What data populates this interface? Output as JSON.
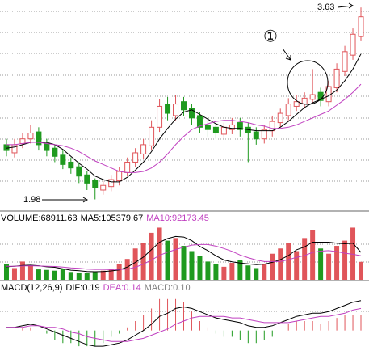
{
  "chart_data": {
    "type": "candlestick",
    "up_color": "#e0555a",
    "down_color": "#1f9a1f",
    "ylim": [
      1.9,
      3.68
    ],
    "open": [
      2.45,
      2.38,
      2.46,
      2.5,
      2.56,
      2.46,
      2.42,
      2.36,
      2.3,
      2.26,
      2.19,
      2.14,
      2.06,
      2.09,
      2.14,
      2.21,
      2.3,
      2.37,
      2.44,
      2.6,
      2.8,
      2.7,
      2.82,
      2.76,
      2.7,
      2.62,
      2.6,
      2.54,
      2.58,
      2.64,
      2.6,
      2.56,
      2.5,
      2.57,
      2.64,
      2.7,
      2.78,
      2.8,
      2.84,
      2.9,
      2.82,
      2.94,
      3.08,
      3.22,
      3.38
    ],
    "high": [
      2.5,
      2.5,
      2.55,
      2.62,
      2.6,
      2.5,
      2.45,
      2.4,
      2.34,
      2.3,
      2.22,
      2.16,
      2.14,
      2.19,
      2.26,
      2.34,
      2.42,
      2.5,
      2.66,
      2.84,
      2.86,
      2.88,
      2.86,
      2.8,
      2.73,
      2.66,
      2.64,
      2.64,
      2.68,
      2.68,
      2.64,
      2.6,
      2.62,
      2.7,
      2.76,
      2.85,
      2.88,
      2.9,
      3.1,
      2.94,
      3.0,
      3.15,
      3.3,
      3.45,
      3.63
    ],
    "low": [
      2.35,
      2.34,
      2.42,
      2.46,
      2.4,
      2.35,
      2.3,
      2.24,
      2.2,
      2.12,
      2.06,
      1.98,
      2.02,
      2.05,
      2.1,
      2.18,
      2.26,
      2.33,
      2.4,
      2.56,
      2.66,
      2.66,
      2.7,
      2.62,
      2.55,
      2.52,
      2.5,
      2.5,
      2.54,
      2.52,
      2.3,
      2.45,
      2.46,
      2.52,
      2.6,
      2.66,
      2.74,
      2.76,
      2.8,
      2.78,
      2.78,
      2.9,
      3.04,
      3.18,
      3.34
    ],
    "close": [
      2.4,
      2.45,
      2.5,
      2.55,
      2.45,
      2.4,
      2.35,
      2.28,
      2.25,
      2.18,
      2.12,
      2.08,
      2.1,
      2.15,
      2.22,
      2.3,
      2.38,
      2.45,
      2.6,
      2.78,
      2.72,
      2.8,
      2.75,
      2.68,
      2.6,
      2.58,
      2.55,
      2.6,
      2.62,
      2.58,
      2.55,
      2.5,
      2.58,
      2.65,
      2.72,
      2.8,
      2.82,
      2.85,
      2.88,
      2.83,
      2.95,
      3.1,
      3.25,
      3.4,
      3.55
    ],
    "series": [
      {
        "color": "#000000",
        "values": [
          2.42,
          2.43,
          2.45,
          2.47,
          2.47,
          2.47,
          2.45,
          2.41,
          2.35,
          2.29,
          2.24,
          2.18,
          2.15,
          2.13,
          2.13,
          2.17,
          2.23,
          2.3,
          2.39,
          2.5,
          2.59,
          2.67,
          2.73,
          2.75,
          2.71,
          2.67,
          2.63,
          2.6,
          2.59,
          2.59,
          2.58,
          2.57,
          2.57,
          2.57,
          2.6,
          2.65,
          2.71,
          2.77,
          2.81,
          2.84,
          2.87,
          2.92,
          3.0,
          3.1,
          3.23
        ]
      },
      {
        "color": "#c040c0",
        "values": [
          2.45,
          2.45,
          2.46,
          2.47,
          2.47,
          2.46,
          2.45,
          2.44,
          2.42,
          2.39,
          2.35,
          2.31,
          2.28,
          2.25,
          2.22,
          2.21,
          2.21,
          2.22,
          2.25,
          2.3,
          2.37,
          2.45,
          2.52,
          2.58,
          2.61,
          2.63,
          2.65,
          2.66,
          2.66,
          2.65,
          2.64,
          2.62,
          2.61,
          2.59,
          2.59,
          2.6,
          2.62,
          2.65,
          2.68,
          2.71,
          2.74,
          2.79,
          2.84,
          2.9,
          2.97
        ]
      }
    ],
    "annotations": [
      "3.63",
      "1.98",
      "①"
    ],
    "volume": {
      "ylim": [
        0,
        220000
      ],
      "legend": [
        {
          "text": "VOLUME:68911.63",
          "color": "#000000"
        },
        {
          "text": "MA5:105379.67",
          "color": "#000000"
        },
        {
          "text": "MA10:92173.45",
          "color": "#c040c0"
        }
      ],
      "values": [
        60000,
        45000,
        70000,
        55000,
        40000,
        38000,
        35000,
        42000,
        30000,
        28000,
        25000,
        30000,
        35000,
        40000,
        60000,
        80000,
        120000,
        140000,
        180000,
        200000,
        150000,
        160000,
        130000,
        110000,
        90000,
        70000,
        60000,
        50000,
        65000,
        75000,
        55000,
        45000,
        60000,
        100000,
        120000,
        140000,
        110000,
        160000,
        190000,
        120000,
        100000,
        130000,
        150000,
        200000,
        68911.63
      ],
      "series": [
        {
          "color": "#000000",
          "values": [
            50000,
            52000,
            55000,
            56000,
            54000,
            50000,
            48000,
            42000,
            37000,
            35000,
            32000,
            31000,
            32000,
            34000,
            38000,
            49000,
            67000,
            87000,
            116000,
            144000,
            158000,
            166000,
            164000,
            150000,
            128000,
            112000,
            92000,
            76000,
            69000,
            64000,
            61000,
            58000,
            60000,
            67000,
            77000,
            93000,
            115000,
            126000,
            144000,
            144000,
            144000,
            140000,
            138000,
            140000,
            105379.67
          ]
        },
        {
          "color": "#c040c0",
          "values": [
            52000,
            52000,
            53000,
            54000,
            53000,
            52000,
            51000,
            49000,
            46000,
            44000,
            41000,
            40000,
            40000,
            39000,
            40000,
            41000,
            48000,
            60000,
            76000,
            94000,
            106000,
            116000,
            125000,
            133000,
            135000,
            135000,
            129000,
            120000,
            109000,
            95000,
            85000,
            76000,
            70000,
            70000,
            70000,
            77000,
            86000,
            93000,
            105000,
            110000,
            112000,
            108000,
            102000,
            98000,
            92173.45
          ]
        }
      ]
    },
    "macd": {
      "ylim": [
        -0.12,
        0.24
      ],
      "legend": [
        {
          "text": "MACD(12,26,9)",
          "color": "#000000"
        },
        {
          "text": "DIF:0.19",
          "color": "#000000"
        },
        {
          "text": "DEA:0.14",
          "color": "#c040c0"
        },
        {
          "text": "MACD:0.10",
          "color": "#808080"
        }
      ],
      "values": [
        0,
        0,
        0.02,
        0.02,
        0,
        -0.02,
        -0.06,
        -0.08,
        -0.08,
        -0.1,
        -0.1,
        -0.1,
        -0.08,
        -0.04,
        -0.02,
        0.02,
        0.06,
        0.1,
        0.14,
        0.2,
        0.2,
        0.2,
        0.18,
        0.12,
        0.06,
        0.02,
        -0.02,
        -0.04,
        -0.04,
        -0.06,
        -0.08,
        -0.08,
        -0.06,
        -0.04,
        0,
        0.04,
        0.06,
        0.06,
        0.06,
        0.04,
        0.06,
        0.08,
        0.1,
        0.1,
        0.1
      ],
      "series": [
        {
          "color": "#000000",
          "values": [
            0.02,
            0.02,
            0.03,
            0.04,
            0.03,
            0.01,
            -0.01,
            -0.03,
            -0.05,
            -0.07,
            -0.09,
            -0.1,
            -0.1,
            -0.09,
            -0.08,
            -0.06,
            -0.03,
            0.0,
            0.04,
            0.09,
            0.11,
            0.14,
            0.15,
            0.14,
            0.12,
            0.1,
            0.08,
            0.07,
            0.06,
            0.05,
            0.03,
            0.02,
            0.02,
            0.03,
            0.05,
            0.07,
            0.09,
            0.1,
            0.11,
            0.11,
            0.12,
            0.14,
            0.16,
            0.18,
            0.19
          ]
        },
        {
          "color": "#c040c0",
          "values": [
            0.02,
            0.02,
            0.02,
            0.03,
            0.03,
            0.02,
            0.02,
            0.01,
            -0.01,
            -0.02,
            -0.04,
            -0.05,
            -0.06,
            -0.07,
            -0.07,
            -0.07,
            -0.06,
            -0.05,
            -0.03,
            -0.01,
            0.01,
            0.04,
            0.06,
            0.08,
            0.09,
            0.09,
            0.09,
            0.09,
            0.08,
            0.08,
            0.07,
            0.06,
            0.05,
            0.05,
            0.05,
            0.05,
            0.06,
            0.07,
            0.08,
            0.09,
            0.09,
            0.1,
            0.11,
            0.13,
            0.14
          ]
        }
      ]
    }
  }
}
